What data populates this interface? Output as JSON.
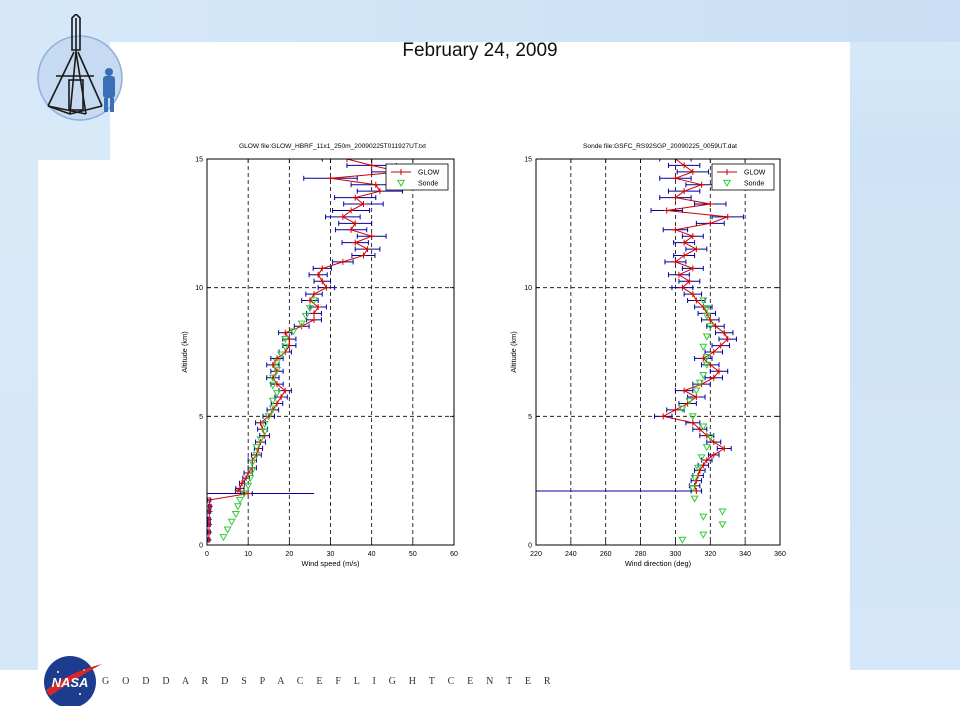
{
  "slide": {
    "title": "February 24, 2009",
    "footer_org": "G O D D A R D   S P A C E   F L I G H T   C E N T E R",
    "nasa_logo_text": "NASA",
    "colors": {
      "glow": "#cc0000",
      "errbar": "#0000a0",
      "sonde": "#33cc33",
      "frame": "#000000"
    }
  },
  "chart_data": [
    {
      "type": "line",
      "title": "GLOW file:GLOW_HBRF_11x1_250m_20090225T011927UT.txt",
      "xlabel": "Wind speed (m/s)",
      "ylabel": "Altitude (km)",
      "xlim": [
        0,
        60
      ],
      "ylim": [
        0,
        15
      ],
      "xticks": [
        0,
        10,
        20,
        30,
        40,
        50,
        60
      ],
      "yticks": [
        0,
        5,
        10,
        15
      ],
      "grid": "dashed",
      "legend": {
        "position": "top-right",
        "entries": [
          "GLOW",
          "Sonde"
        ]
      },
      "series": [
        {
          "name": "GLOW",
          "marker": "+",
          "points": [
            [
              0.4,
              0.2,
              0.3
            ],
            [
              0.5,
              0.5,
              0.3
            ],
            [
              0.5,
              0.8,
              0.3
            ],
            [
              0.5,
              1.0,
              0.3
            ],
            [
              0.6,
              1.3,
              0.3
            ],
            [
              0.7,
              1.5,
              0.3
            ],
            [
              0.5,
              1.75,
              0.4
            ],
            [
              10,
              2.0,
              1.0
            ],
            [
              7.5,
              2.1,
              0.6
            ],
            [
              8,
              2.2,
              1.0
            ],
            [
              8.5,
              2.4,
              0.6
            ],
            [
              9.5,
              2.6,
              0.8
            ],
            [
              10,
              2.8,
              1.0
            ],
            [
              11,
              3.0,
              1.0
            ],
            [
              11,
              3.3,
              1.0
            ],
            [
              12,
              3.5,
              1.2
            ],
            [
              12.5,
              3.75,
              1.0
            ],
            [
              13,
              4.0,
              1.2
            ],
            [
              14,
              4.25,
              1.2
            ],
            [
              13.5,
              4.5,
              1.2
            ],
            [
              13,
              4.75,
              1.2
            ],
            [
              15,
              5.0,
              1.4
            ],
            [
              16,
              5.25,
              1.4
            ],
            [
              17,
              5.5,
              1.4
            ],
            [
              18,
              5.75,
              1.5
            ],
            [
              19,
              6.0,
              1.5
            ],
            [
              17,
              6.25,
              1.5
            ],
            [
              16,
              6.5,
              1.5
            ],
            [
              17,
              6.75,
              1.5
            ],
            [
              16,
              7.0,
              1.5
            ],
            [
              17,
              7.25,
              1.5
            ],
            [
              19,
              7.5,
              1.5
            ],
            [
              20,
              7.75,
              1.6
            ],
            [
              20,
              8.0,
              1.6
            ],
            [
              19,
              8.25,
              1.6
            ],
            [
              23,
              8.5,
              1.8
            ],
            [
              26,
              8.75,
              1.8
            ],
            [
              26,
              9.0,
              1.8
            ],
            [
              27,
              9.25,
              2.0
            ],
            [
              25,
              9.5,
              2.0
            ],
            [
              26,
              9.75,
              2.0
            ],
            [
              29,
              10.0,
              2.0
            ],
            [
              28,
              10.25,
              2.0
            ],
            [
              27,
              10.5,
              2.2
            ],
            [
              28,
              10.75,
              2.2
            ],
            [
              33,
              11.0,
              2.5
            ],
            [
              38,
              11.25,
              2.8
            ],
            [
              39,
              11.5,
              3.0
            ],
            [
              36,
              11.75,
              3.2
            ],
            [
              40,
              12.0,
              3.5
            ],
            [
              35,
              12.25,
              3.8
            ],
            [
              36,
              12.5,
              4.0
            ],
            [
              33,
              12.75,
              4.2
            ],
            [
              35,
              13.0,
              4.5
            ],
            [
              38,
              13.25,
              4.8
            ],
            [
              36,
              13.5,
              5.0
            ],
            [
              42,
              13.75,
              5.5
            ],
            [
              41,
              14.0,
              6.0
            ],
            [
              30,
              14.25,
              6.5
            ],
            [
              47,
              14.5,
              7.0
            ],
            [
              40,
              14.75,
              6.0
            ],
            [
              34,
              15.0,
              6.0
            ]
          ],
          "errbar_note": "horizontal bars at 2.0 km span 0 to 26 m/s",
          "wide_errbar": [
            0,
            26,
            2.0
          ]
        },
        {
          "name": "Sonde",
          "marker": "triangle-down",
          "points": [
            [
              4,
              0.3
            ],
            [
              5,
              0.6
            ],
            [
              6,
              0.9
            ],
            [
              7,
              1.2
            ],
            [
              7.5,
              1.5
            ],
            [
              8,
              1.75
            ],
            [
              9,
              2.0
            ],
            [
              10,
              2.3
            ],
            [
              10.5,
              2.6
            ],
            [
              11,
              2.9
            ],
            [
              11,
              3.2
            ],
            [
              12,
              3.5
            ],
            [
              12,
              3.8
            ],
            [
              13,
              4.1
            ],
            [
              14,
              4.4
            ],
            [
              14,
              4.7
            ],
            [
              15,
              5.0
            ],
            [
              16,
              5.3
            ],
            [
              16,
              5.6
            ],
            [
              17,
              5.9
            ],
            [
              16,
              6.2
            ],
            [
              16,
              6.5
            ],
            [
              17,
              6.8
            ],
            [
              17,
              7.1
            ],
            [
              18,
              7.4
            ],
            [
              19,
              7.7
            ],
            [
              19,
              8.0
            ],
            [
              21,
              8.3
            ],
            [
              23,
              8.6
            ],
            [
              24,
              8.9
            ],
            [
              25,
              9.2
            ],
            [
              26,
              9.5
            ]
          ]
        }
      ]
    },
    {
      "type": "line",
      "title": "Sonde file:GSFC_RS92SGP_20090225_0059UT.dat",
      "xlabel": "Wind direction (deg)",
      "ylabel": "Altitude (km)",
      "xlim": [
        220,
        360
      ],
      "ylim": [
        0,
        15
      ],
      "xticks": [
        220,
        240,
        260,
        280,
        300,
        320,
        340,
        360
      ],
      "yticks": [
        0,
        5,
        10,
        15
      ],
      "grid": "dashed",
      "legend": {
        "position": "top-right",
        "entries": [
          "GLOW",
          "Sonde"
        ]
      },
      "series": [
        {
          "name": "GLOW",
          "marker": "+",
          "points": [
            [
              312,
              2.1,
              3
            ],
            [
              311,
              2.3,
              3
            ],
            [
              312,
              2.5,
              3
            ],
            [
              313,
              2.7,
              3
            ],
            [
              314,
              2.9,
              3
            ],
            [
              316,
              3.1,
              3
            ],
            [
              318,
              3.3,
              3
            ],
            [
              322,
              3.5,
              3
            ],
            [
              328,
              3.75,
              4
            ],
            [
              322,
              4.0,
              4
            ],
            [
              318,
              4.25,
              4
            ],
            [
              314,
              4.5,
              4
            ],
            [
              310,
              4.75,
              4
            ],
            [
              293,
              5.0,
              5
            ],
            [
              300,
              5.25,
              5
            ],
            [
              307,
              5.5,
              5
            ],
            [
              312,
              5.75,
              5
            ],
            [
              305,
              6.0,
              5
            ],
            [
              315,
              6.25,
              5
            ],
            [
              322,
              6.5,
              5
            ],
            [
              325,
              6.75,
              5
            ],
            [
              320,
              7.0,
              5
            ],
            [
              316,
              7.25,
              5
            ],
            [
              322,
              7.5,
              5
            ],
            [
              326,
              7.75,
              5
            ],
            [
              330,
              8.0,
              5
            ],
            [
              328,
              8.25,
              5
            ],
            [
              323,
              8.5,
              5
            ],
            [
              320,
              8.75,
              5
            ],
            [
              318,
              9.0,
              5
            ],
            [
              316,
              9.25,
              5
            ],
            [
              312,
              9.5,
              5
            ],
            [
              310,
              9.75,
              5
            ],
            [
              304,
              10.0,
              6
            ],
            [
              308,
              10.25,
              6
            ],
            [
              302,
              10.5,
              6
            ],
            [
              310,
              10.75,
              6
            ],
            [
              300,
              11.0,
              6
            ],
            [
              305,
              11.25,
              6
            ],
            [
              312,
              11.5,
              6
            ],
            [
              305,
              11.75,
              6
            ],
            [
              310,
              12.0,
              6
            ],
            [
              300,
              12.25,
              7
            ],
            [
              320,
              12.5,
              8
            ],
            [
              330,
              12.75,
              9
            ],
            [
              295,
              13.0,
              9
            ],
            [
              320,
              13.25,
              9
            ],
            [
              300,
              13.5,
              9
            ],
            [
              305,
              13.75,
              9
            ],
            [
              315,
              14.0,
              9
            ],
            [
              300,
              14.25,
              9
            ],
            [
              310,
              14.5,
              9
            ],
            [
              305,
              14.75,
              9
            ],
            [
              300,
              15.0,
              9
            ]
          ],
          "wide_errbar": [
            220,
            312,
            2.1
          ]
        },
        {
          "name": "Sonde",
          "marker": "triangle-down",
          "points": [
            [
              304,
              0.2
            ],
            [
              316,
              0.4
            ],
            [
              327,
              0.8
            ],
            [
              327,
              1.3
            ],
            [
              316,
              1.1
            ],
            [
              311,
              1.8
            ],
            [
              310,
              2.2
            ],
            [
              311,
              2.6
            ],
            [
              313,
              3.0
            ],
            [
              315,
              3.4
            ],
            [
              318,
              3.8
            ],
            [
              320,
              4.2
            ],
            [
              316,
              4.6
            ],
            [
              310,
              5.0
            ],
            [
              304,
              5.3
            ],
            [
              308,
              5.6
            ],
            [
              312,
              6.0
            ],
            [
              314,
              6.3
            ],
            [
              316,
              6.6
            ],
            [
              318,
              7.0
            ],
            [
              318,
              7.3
            ],
            [
              316,
              7.7
            ],
            [
              318,
              8.1
            ],
            [
              320,
              8.5
            ],
            [
              318,
              8.9
            ],
            [
              318,
              9.2
            ],
            [
              316,
              9.5
            ]
          ]
        }
      ]
    }
  ]
}
